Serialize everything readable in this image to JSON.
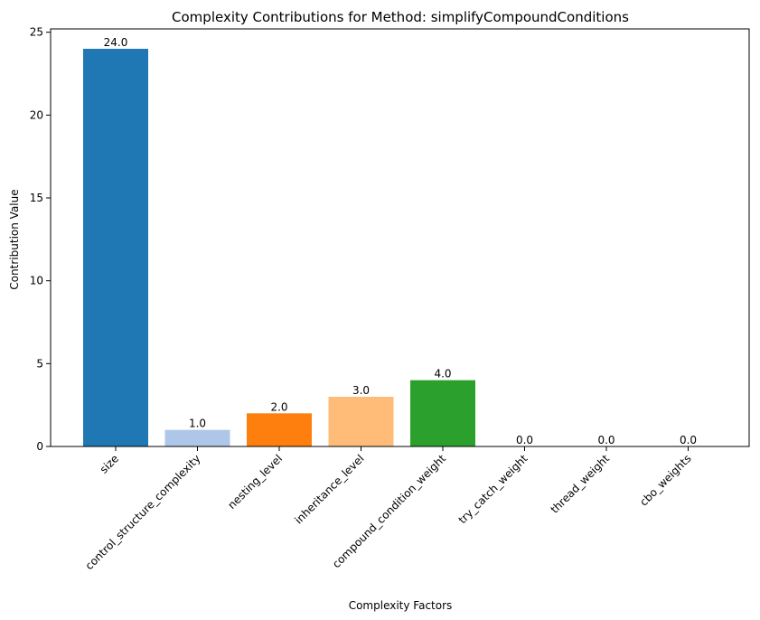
{
  "chart_data": {
    "type": "bar",
    "title": "Complexity Contributions for Method: simplifyCompoundConditions",
    "xlabel": "Complexity Factors",
    "ylabel": "Contribution Value",
    "categories": [
      "size",
      "control_structure_complexity",
      "nesting_level",
      "inheritance_level",
      "compound_condition_weight",
      "try_catch_weight",
      "thread_weight",
      "cbo_weights"
    ],
    "values": [
      24.0,
      1.0,
      2.0,
      3.0,
      4.0,
      0.0,
      0.0,
      0.0
    ],
    "value_labels": [
      "24.0",
      "1.0",
      "2.0",
      "3.0",
      "4.0",
      "0.0",
      "0.0",
      "0.0"
    ],
    "colors": [
      "#1f77b4",
      "#aec7e8",
      "#ff7f0e",
      "#ffbb78",
      "#2ca02c",
      "#98df8a",
      "#d62728",
      "#ff9896"
    ],
    "ylim": [
      0,
      25.2
    ],
    "yticks": [
      0,
      5,
      10,
      15,
      20,
      25
    ],
    "ytick_labels": [
      "0",
      "5",
      "10",
      "15",
      "20",
      "25"
    ],
    "grid": false,
    "legend": "none"
  }
}
